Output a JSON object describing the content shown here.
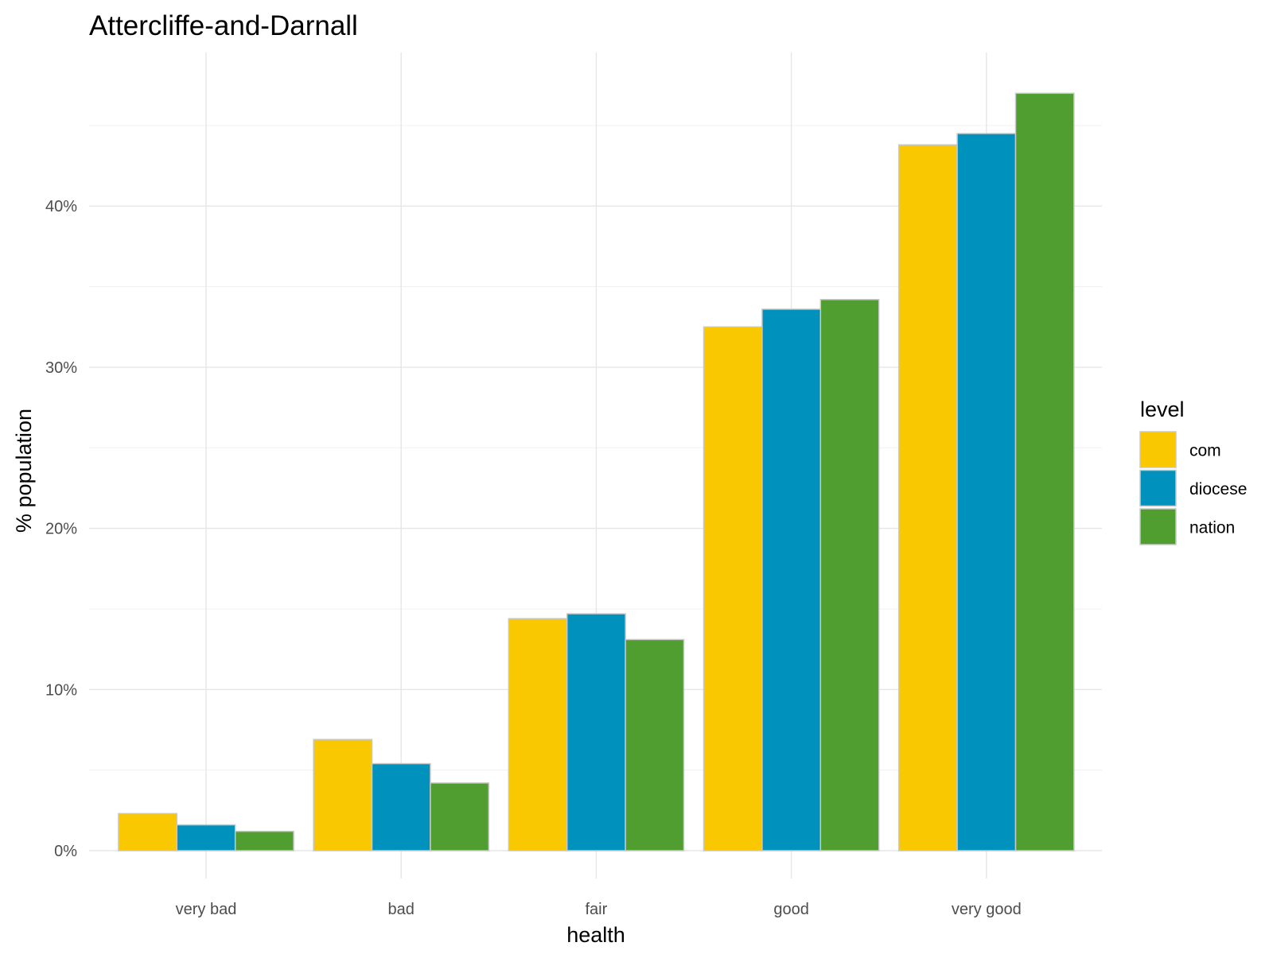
{
  "chart_data": {
    "type": "bar",
    "title": "Attercliffe-and-Darnall",
    "xlabel": "health",
    "ylabel": "% population",
    "categories": [
      "very bad",
      "bad",
      "fair",
      "good",
      "very good"
    ],
    "series": [
      {
        "name": "com",
        "color": "#F9C800",
        "values": [
          2.3,
          6.9,
          14.4,
          32.5,
          43.8
        ]
      },
      {
        "name": "diocese",
        "color": "#0092BD",
        "values": [
          1.6,
          5.4,
          14.7,
          33.6,
          44.5
        ]
      },
      {
        "name": "nation",
        "color": "#509E2F",
        "values": [
          1.2,
          4.2,
          13.1,
          34.2,
          47.0
        ]
      }
    ],
    "ylim": [
      0,
      49
    ],
    "yticks": [
      0,
      10,
      20,
      30,
      40
    ],
    "ytick_labels": [
      "0%",
      "10%",
      "20%",
      "30%",
      "40%"
    ],
    "grid": true,
    "legend": {
      "title": "level",
      "position": "right"
    }
  }
}
